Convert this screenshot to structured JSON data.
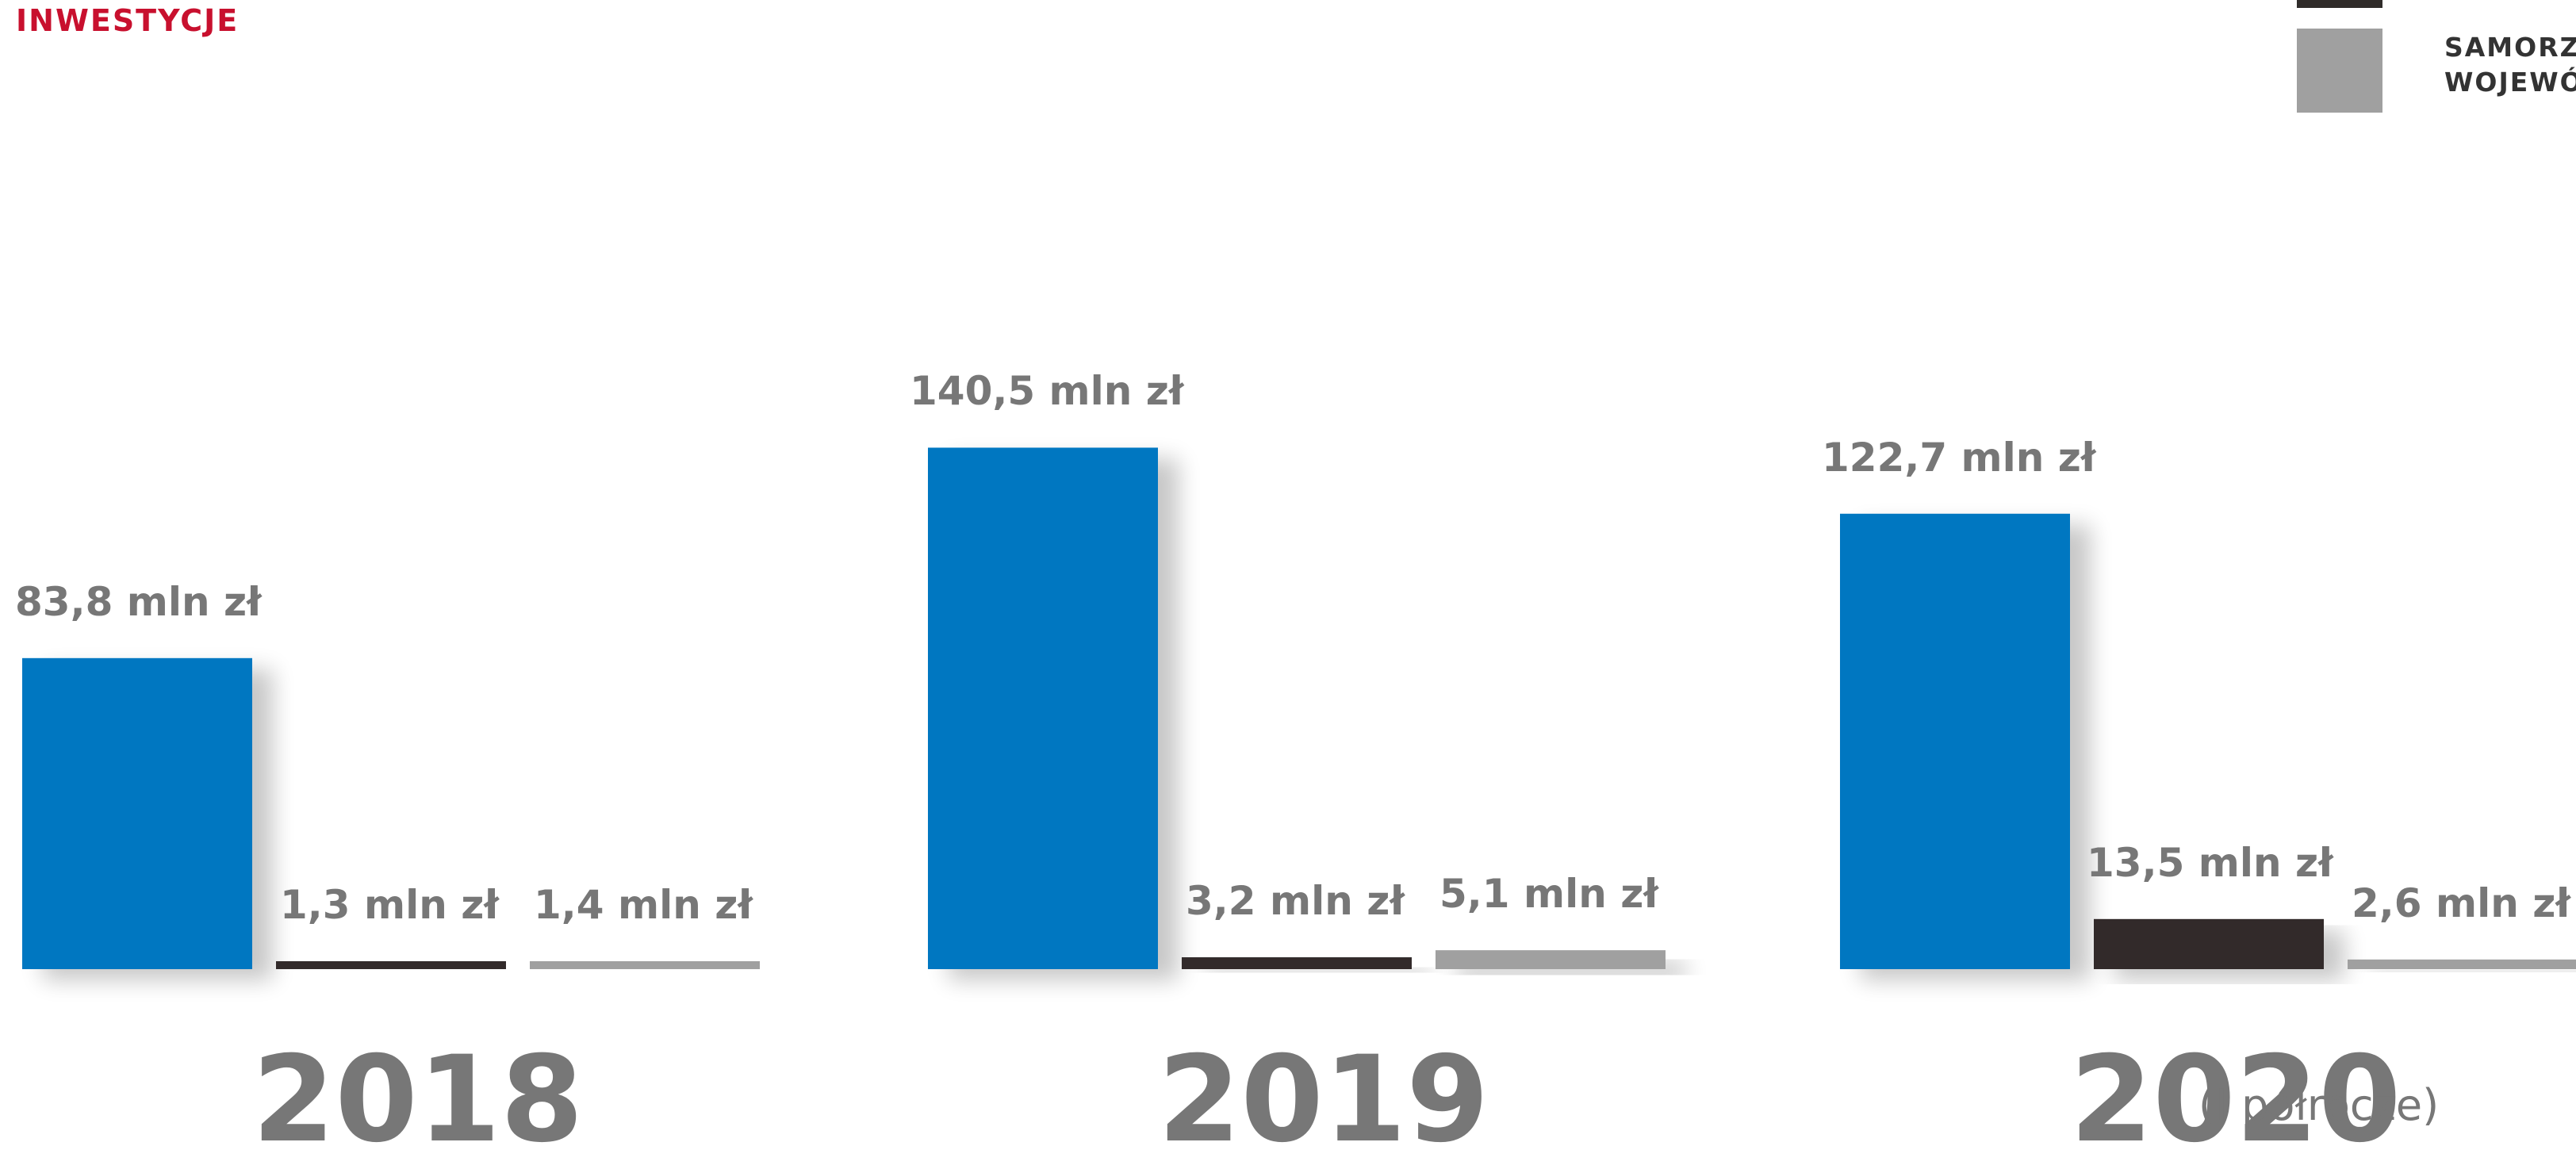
{
  "heading": "INWESTYCJE",
  "legend": {
    "items": [
      {
        "text": "",
        "color": "#302c2a"
      },
      {
        "text": "SAMORZ",
        "text2": "WOJEWÓ",
        "color": "#a0a0a0"
      }
    ]
  },
  "chart_data": {
    "type": "bar",
    "categories": [
      "2018",
      "2019",
      "2020"
    ],
    "category_notes": [
      "",
      "",
      "(I półrocze)"
    ],
    "unit": "mln zł",
    "colors": [
      "#0077c1",
      "#302c2a",
      "#a0a0a0"
    ],
    "series": [
      {
        "values": [
          83.8,
          140.5,
          122.7
        ],
        "labels": [
          "83,8 mln zł",
          "140,5 mln zł",
          "122,7 mln zł"
        ]
      },
      {
        "values": [
          1.3,
          3.2,
          13.5
        ],
        "labels": [
          "1,3 mln zł",
          "3,2 mln zł",
          "13,5 mln zł"
        ]
      },
      {
        "values": [
          1.4,
          5.1,
          2.6
        ],
        "labels": [
          "1,4 mln zł",
          "5,1 mln zł",
          "2,6 mln zł"
        ]
      }
    ]
  }
}
